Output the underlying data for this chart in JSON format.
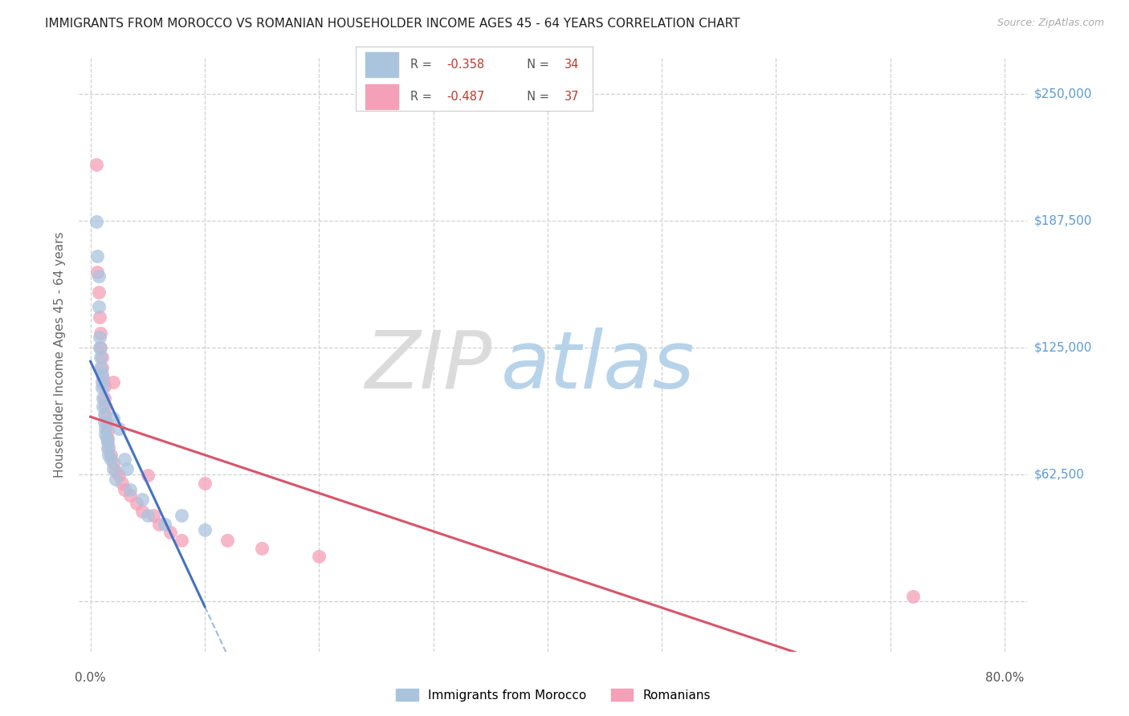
{
  "title": "IMMIGRANTS FROM MOROCCO VS ROMANIAN HOUSEHOLDER INCOME AGES 45 - 64 YEARS CORRELATION CHART",
  "source": "Source: ZipAtlas.com",
  "ylabel": "Householder Income Ages 45 - 64 years",
  "legend_R1": "R = -0.358",
  "legend_N1": "N = 34",
  "legend_R2": "R = -0.487",
  "legend_N2": "N = 37",
  "legend_label1": "Immigrants from Morocco",
  "legend_label2": "Romanians",
  "morocco_color": "#aac4de",
  "romanian_color": "#f4a0b8",
  "trendline_morocco_color": "#4472c4",
  "trendline_romanian_color": "#d9546a",
  "watermark_zip_color": "#d8d8d8",
  "watermark_atlas_color": "#b0cfe8",
  "y_tick_color": "#5b9bd5",
  "x_label_color": "#555555",
  "title_color": "#222222",
  "source_color": "#aaaaaa",
  "grid_color": "#d0d0d0",
  "background_color": "#ffffff",
  "morocco_x": [
    0.5,
    0.6,
    0.7,
    0.7,
    0.8,
    0.8,
    0.9,
    0.9,
    1.0,
    1.0,
    1.0,
    1.1,
    1.1,
    1.2,
    1.2,
    1.3,
    1.3,
    1.4,
    1.5,
    1.5,
    1.6,
    1.8,
    2.0,
    2.0,
    2.2,
    2.5,
    3.0,
    3.2,
    3.5,
    4.5,
    5.0,
    6.5,
    8.0,
    10.0
  ],
  "morocco_y": [
    187000,
    170000,
    160000,
    145000,
    130000,
    125000,
    120000,
    115000,
    112000,
    108000,
    105000,
    100000,
    96000,
    92000,
    88000,
    85000,
    82000,
    80000,
    78000,
    75000,
    72000,
    70000,
    90000,
    65000,
    60000,
    85000,
    70000,
    65000,
    55000,
    50000,
    42000,
    38000,
    42000,
    35000
  ],
  "romanian_x": [
    0.5,
    0.6,
    0.7,
    0.8,
    0.9,
    0.9,
    1.0,
    1.0,
    1.1,
    1.2,
    1.2,
    1.3,
    1.3,
    1.4,
    1.5,
    1.5,
    1.6,
    1.8,
    2.0,
    2.0,
    2.2,
    2.5,
    2.8,
    3.0,
    3.5,
    4.0,
    4.5,
    5.0,
    5.5,
    6.0,
    7.0,
    8.0,
    10.0,
    12.0,
    15.0,
    20.0,
    72.0
  ],
  "romanian_y": [
    215000,
    162000,
    152000,
    140000,
    132000,
    125000,
    120000,
    115000,
    110000,
    106000,
    100000,
    96000,
    92000,
    88000,
    84000,
    80000,
    76000,
    72000,
    108000,
    68000,
    64000,
    62000,
    58000,
    55000,
    52000,
    48000,
    44000,
    62000,
    42000,
    38000,
    34000,
    30000,
    58000,
    30000,
    26000,
    22000,
    2000
  ],
  "xlim_left": -1.0,
  "xlim_right": 82.0,
  "ylim_bottom": -25000,
  "ylim_top": 268000,
  "y_ticks": [
    0,
    62500,
    125000,
    187500,
    250000
  ],
  "y_tick_labels": [
    "",
    "$62,500",
    "$125,000",
    "$187,500",
    "$250,000"
  ],
  "x_ticks": [
    0,
    10,
    20,
    30,
    40,
    50,
    60,
    70,
    80
  ],
  "morocco_trend_x_start": 0.0,
  "morocco_trend_x_end": 10.0,
  "romanian_trend_x_end": 80.0
}
